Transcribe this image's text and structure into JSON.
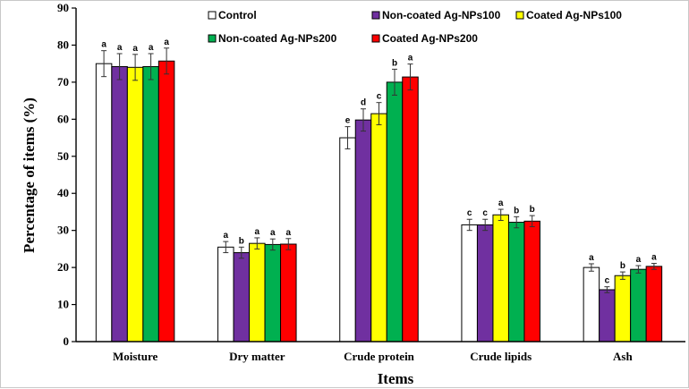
{
  "chart_data": {
    "type": "bar",
    "title": "",
    "xlabel": "Items",
    "ylabel": "Percentage of items (%)",
    "ylim": [
      0,
      90
    ],
    "yticks": [
      0,
      10,
      20,
      30,
      40,
      50,
      60,
      70,
      80,
      90
    ],
    "grid": false,
    "legend_position": "top",
    "categories": [
      "Moisture",
      "Dry matter",
      "Crude protein",
      "Crude lipids",
      "Ash"
    ],
    "series": [
      {
        "name": "Control",
        "color": "#ffffff",
        "values": [
          75.0,
          25.5,
          55.0,
          31.5,
          20.0
        ],
        "errors": [
          3.5,
          1.5,
          3.0,
          1.5,
          1.0
        ],
        "labels": [
          "a",
          "a",
          "e",
          "c",
          "a"
        ]
      },
      {
        "name": "Non-coated Ag-NPs100",
        "color": "#7030a0",
        "values": [
          74.2,
          24.0,
          59.8,
          31.5,
          14.0
        ],
        "errors": [
          3.5,
          1.5,
          3.0,
          1.5,
          0.8
        ],
        "labels": [
          "a",
          "b",
          "d",
          "c",
          "c"
        ]
      },
      {
        "name": "Coated Ag-NPs100",
        "color": "#ffff00",
        "values": [
          74.0,
          26.5,
          61.5,
          34.2,
          17.8
        ],
        "errors": [
          3.5,
          1.5,
          3.0,
          1.5,
          1.0
        ],
        "labels": [
          "a",
          "a",
          "c",
          "a",
          "b"
        ]
      },
      {
        "name": "Non-coated Ag-NPs200",
        "color": "#00b050",
        "values": [
          74.2,
          26.2,
          70.0,
          32.2,
          19.5
        ],
        "errors": [
          3.5,
          1.5,
          3.5,
          1.5,
          1.0
        ],
        "labels": [
          "a",
          "a",
          "b",
          "b",
          "a"
        ]
      },
      {
        "name": "Coated Ag-NPs200",
        "color": "#ff0000",
        "values": [
          75.7,
          26.3,
          71.4,
          32.5,
          20.3
        ],
        "errors": [
          3.5,
          1.5,
          3.5,
          1.5,
          0.8
        ],
        "labels": [
          "a",
          "a",
          "a",
          "b",
          "a"
        ]
      }
    ]
  }
}
